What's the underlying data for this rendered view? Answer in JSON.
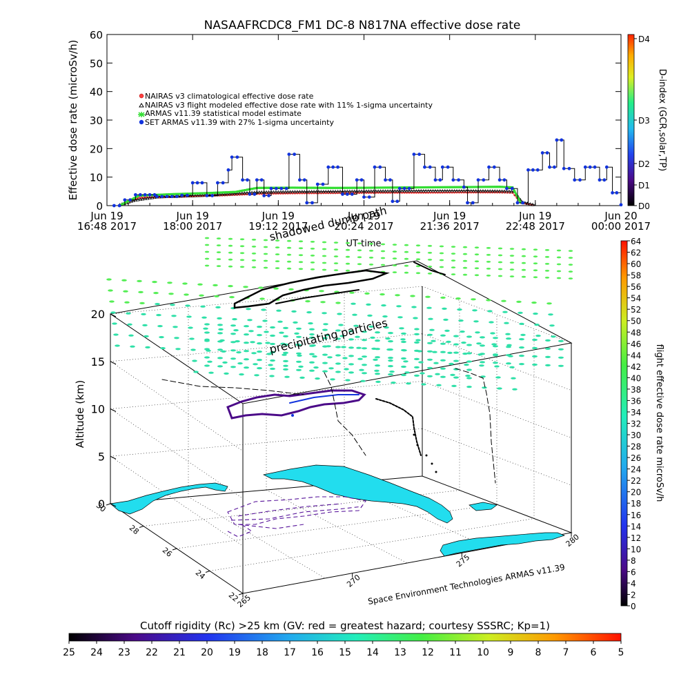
{
  "chart_data": [
    {
      "type": "scatter",
      "title": "NASAAFRCDC8_FM1 DC-8   N817NA effective dose rate",
      "ylabel": "Effective dose rate (microSv/h)",
      "xlabel": "UT time",
      "ylim": [
        0,
        60
      ],
      "yticks": [
        "0",
        "10",
        "20",
        "30",
        "40",
        "50",
        "60"
      ],
      "xticks": [
        {
          "date": "Jun 19",
          "time": "16:48 2017"
        },
        {
          "date": "Jun 19",
          "time": "18:00 2017"
        },
        {
          "date": "Jun 19",
          "time": "19:12 2017"
        },
        {
          "date": "Jun 19",
          "time": "20:24 2017"
        },
        {
          "date": "Jun 19",
          "time": "21:36 2017"
        },
        {
          "date": "Jun 19",
          "time": "22:48 2017"
        },
        {
          "date": "Jun 20",
          "time": "00:00 2017"
        }
      ],
      "x_units": "hours UT on Jun 19 2017",
      "xlim": [
        16.8,
        24.0
      ],
      "grid": false,
      "legend_position": "upper-left",
      "legend": [
        "NAIRAS v3 climatological effective dose rate",
        "NAIRAS v3 flight modeled effective dose rate with 11% 1-sigma uncertainty",
        "ARMAS v11.39 statistical model estimate",
        "SET ARMAS v11.39 with 27% 1-sigma uncertainty"
      ],
      "series": [
        {
          "name": "NAIRAS v3 climatological effective dose rate",
          "color": "#ff4040",
          "points": [
            [
              17.02,
              0.4
            ],
            [
              17.25,
              2.8
            ],
            [
              17.6,
              3.0
            ],
            [
              18.0,
              3.3
            ],
            [
              18.45,
              3.6
            ],
            [
              18.9,
              4.1
            ],
            [
              19.4,
              4.3
            ],
            [
              20.0,
              4.4
            ],
            [
              20.6,
              4.5
            ],
            [
              21.2,
              4.5
            ],
            [
              21.8,
              4.6
            ],
            [
              22.3,
              4.6
            ],
            [
              22.48,
              4.5
            ],
            [
              22.6,
              1.0
            ],
            [
              22.78,
              0.2
            ]
          ]
        },
        {
          "name": "NAIRAS v3 flight modeled effective dose rate with 11% 1-sigma uncertainty",
          "color": "#000000",
          "points": [
            [
              16.98,
              0.3
            ],
            [
              17.2,
              2.0
            ],
            [
              17.5,
              3.1
            ],
            [
              18.0,
              3.5
            ],
            [
              18.45,
              4.0
            ],
            [
              18.9,
              4.7
            ],
            [
              19.5,
              4.9
            ],
            [
              20.1,
              5.0
            ],
            [
              20.7,
              5.1
            ],
            [
              21.3,
              5.2
            ],
            [
              21.9,
              5.2
            ],
            [
              22.3,
              5.1
            ],
            [
              22.5,
              5.0
            ],
            [
              22.62,
              1.2
            ],
            [
              22.8,
              0.2
            ]
          ]
        },
        {
          "name": "ARMAS v11.39 statistical model estimate",
          "color": "#33dd33",
          "points": [
            [
              17.0,
              0.3
            ],
            [
              17.25,
              3.5
            ],
            [
              17.7,
              4.0
            ],
            [
              18.2,
              4.4
            ],
            [
              18.6,
              4.8
            ],
            [
              18.9,
              6.2
            ],
            [
              19.4,
              6.3
            ],
            [
              20.0,
              6.2
            ],
            [
              20.6,
              6.3
            ],
            [
              21.2,
              6.4
            ],
            [
              21.8,
              6.5
            ],
            [
              22.3,
              6.6
            ],
            [
              22.48,
              6.4
            ],
            [
              22.6,
              0.8
            ]
          ]
        },
        {
          "name": "SET ARMAS v11.39 with 27% 1-sigma uncertainty",
          "color": "#1133dd",
          "points": [
            [
              16.9,
              0.0
            ],
            [
              17.05,
              2.0
            ],
            [
              17.2,
              3.8
            ],
            [
              17.5,
              3.2
            ],
            [
              17.85,
              3.6
            ],
            [
              18.0,
              8.0
            ],
            [
              18.2,
              3.5
            ],
            [
              18.35,
              8.0
            ],
            [
              18.5,
              12.5
            ],
            [
              18.55,
              17.0
            ],
            [
              18.7,
              9.0
            ],
            [
              18.8,
              4.0
            ],
            [
              18.9,
              9.0
            ],
            [
              19.0,
              3.5
            ],
            [
              19.1,
              6.0
            ],
            [
              19.35,
              18.0
            ],
            [
              19.5,
              9.0
            ],
            [
              19.6,
              1.0
            ],
            [
              19.75,
              7.5
            ],
            [
              19.9,
              13.5
            ],
            [
              20.1,
              4.0
            ],
            [
              20.3,
              9.0
            ],
            [
              20.4,
              3.0
            ],
            [
              20.55,
              13.5
            ],
            [
              20.7,
              9.0
            ],
            [
              20.8,
              1.5
            ],
            [
              20.9,
              6.0
            ],
            [
              21.1,
              18.0
            ],
            [
              21.25,
              13.5
            ],
            [
              21.4,
              9.0
            ],
            [
              21.5,
              13.5
            ],
            [
              21.65,
              9.0
            ],
            [
              21.8,
              6.5
            ],
            [
              21.85,
              1.0
            ],
            [
              22.0,
              9.0
            ],
            [
              22.15,
              13.5
            ],
            [
              22.3,
              9.0
            ],
            [
              22.4,
              6.0
            ],
            [
              22.55,
              1.0
            ],
            [
              22.7,
              12.5
            ],
            [
              22.9,
              18.5
            ],
            [
              23.0,
              13.5
            ],
            [
              23.1,
              23.0
            ],
            [
              23.2,
              13.0
            ],
            [
              23.35,
              9.0
            ],
            [
              23.5,
              13.5
            ],
            [
              23.7,
              9.0
            ],
            [
              23.8,
              13.5
            ],
            [
              23.88,
              4.5
            ],
            [
              24.0,
              0.3
            ]
          ]
        }
      ],
      "colorbar": {
        "label": "D-index (GCR,solar,TP)",
        "ticks": [
          "D0",
          "D1",
          "D2",
          "D3",
          "D4"
        ]
      }
    },
    {
      "type": "scatter",
      "subtype": "3d-flight-track",
      "ylabel": "Altitude (km)",
      "zticks": [
        "0",
        "5",
        "10",
        "15",
        "20"
      ],
      "lat_ticks": [
        "30",
        "28",
        "26",
        "24",
        "22"
      ],
      "lon_ticks": [
        "265",
        "270",
        "275",
        "280"
      ],
      "annotations": [
        "precipitating particles",
        "shadowed dump path"
      ],
      "credit": "Space Environment Technologies ARMAS v11.39",
      "colorbar": {
        "label": "flight effective dose rate microSv/h",
        "ticks": [
          "0",
          "2",
          "4",
          "6",
          "8",
          "10",
          "12",
          "14",
          "16",
          "18",
          "20",
          "22",
          "24",
          "26",
          "28",
          "30",
          "32",
          "34",
          "36",
          "38",
          "40",
          "42",
          "44",
          "46",
          "48",
          "50",
          "52",
          "54",
          "56",
          "58",
          "60",
          "62",
          "64"
        ]
      },
      "cutoff_bar": {
        "label": "Cutoff rigidity (Rc) >25 km (GV: red = greatest hazard; courtesy SSSRC; Kp=1)",
        "ticks": [
          "25",
          "24",
          "23",
          "22",
          "21",
          "20",
          "19",
          "18",
          "17",
          "16",
          "15",
          "14",
          "13",
          "12",
          "11",
          "10",
          "9",
          "8",
          "7",
          "6",
          "5"
        ]
      },
      "colors": {
        "particles": "#2fe0a8",
        "particles_top": "#55ee55",
        "water_land": "#22ddee",
        "track_low": "#551199"
      }
    }
  ]
}
